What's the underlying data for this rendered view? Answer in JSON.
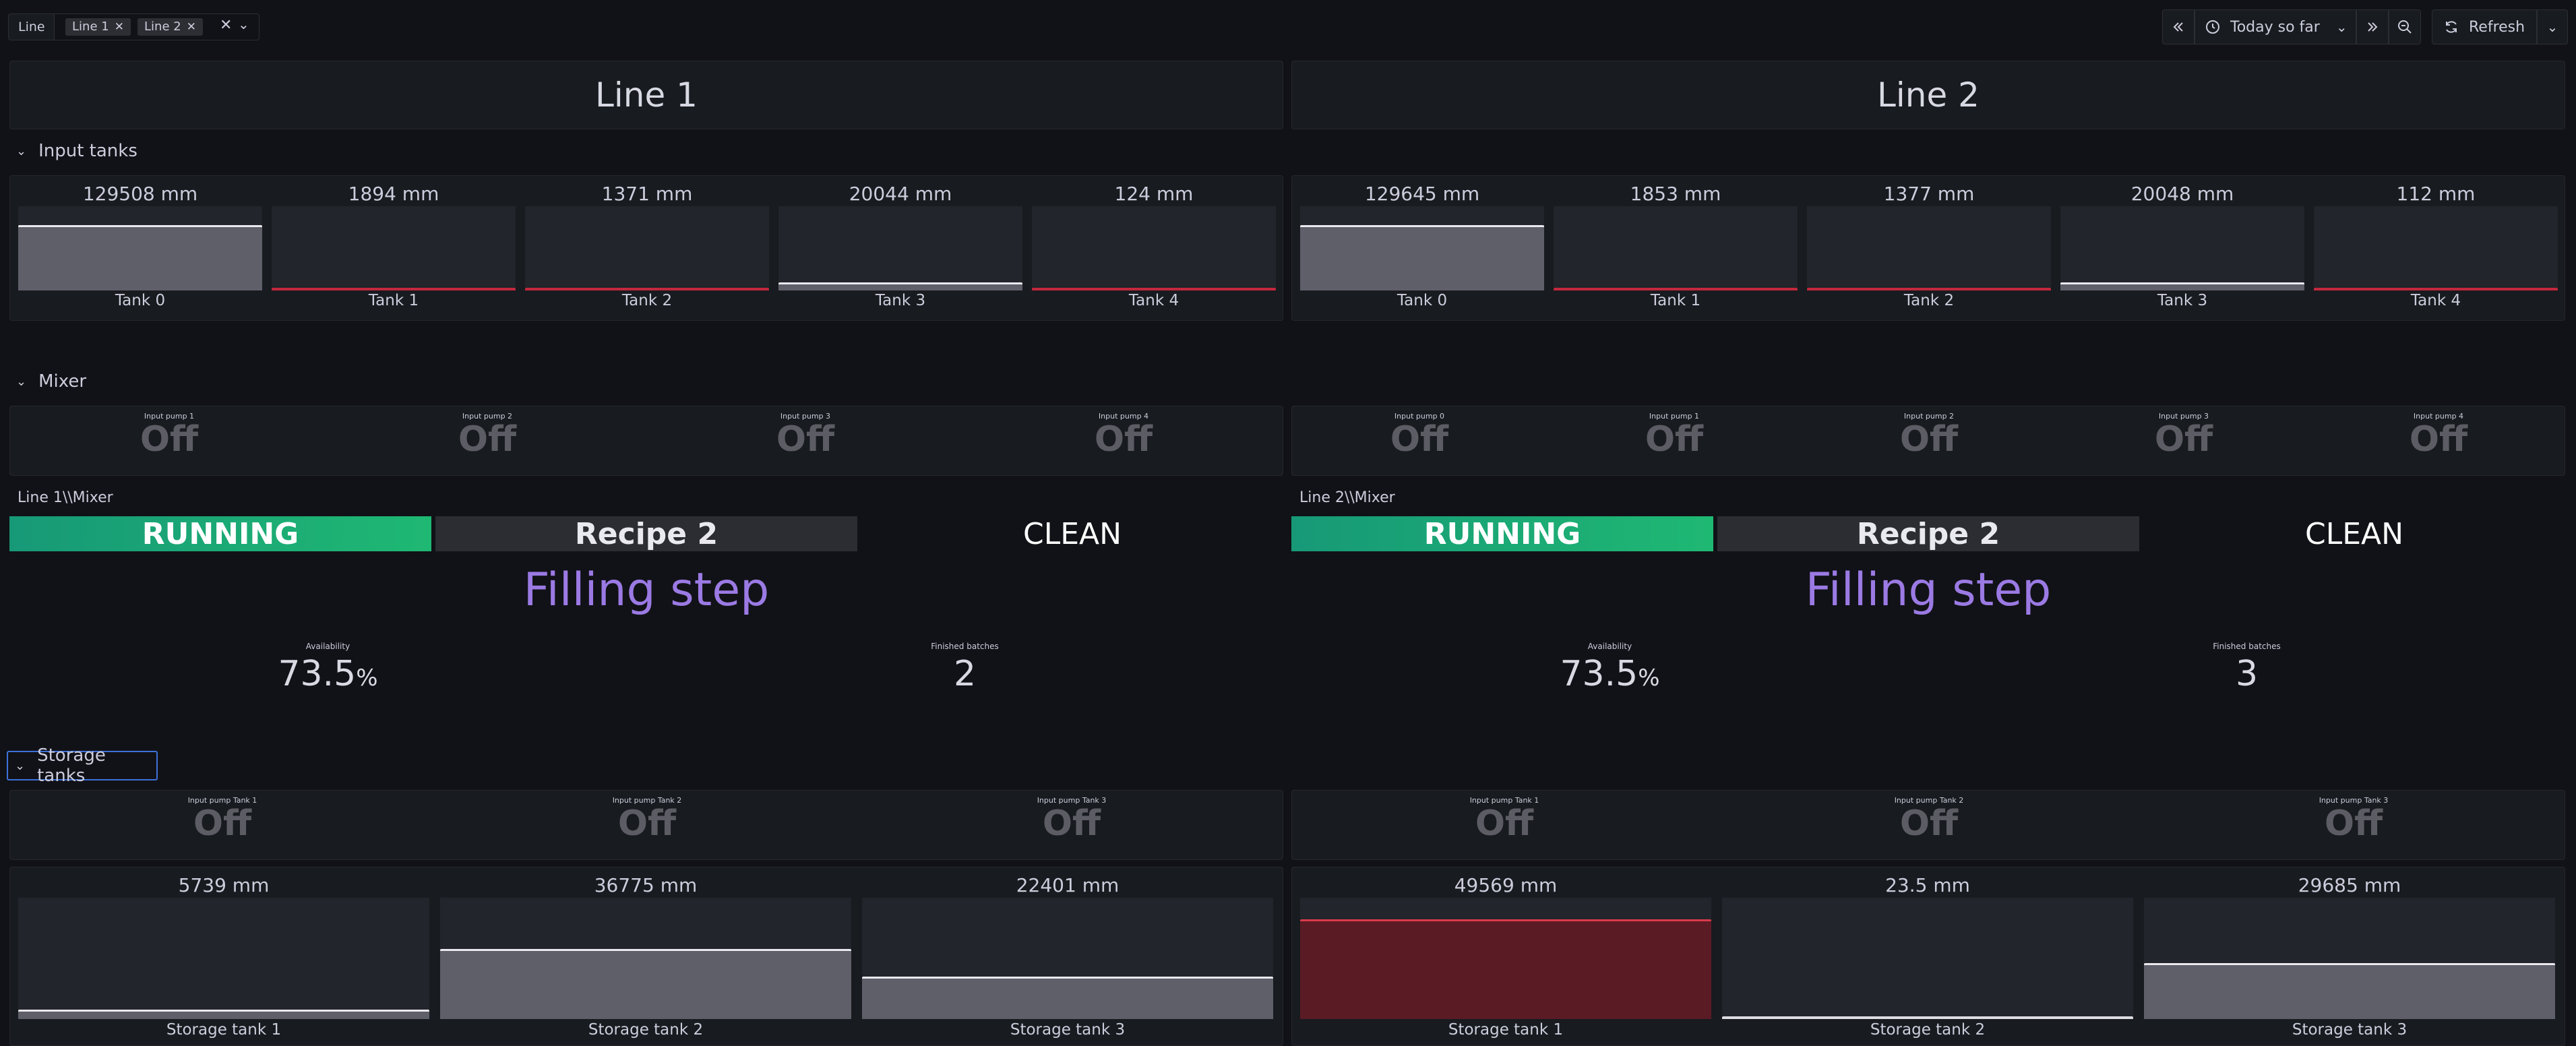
{
  "toolbar": {
    "variable_label": "Line",
    "selected": [
      "Line 1",
      "Line 2"
    ],
    "clear_icon": "close-icon",
    "time_range": "Today so far",
    "refresh_label": "Refresh"
  },
  "sections": {
    "input_tanks": "Input tanks",
    "mixer": "Mixer",
    "storage_tanks": "Storage tanks"
  },
  "lines": [
    {
      "title": "Line 1",
      "input_tanks": [
        {
          "name": "Tank 0",
          "value": "129508 mm",
          "level": 0.78,
          "alarm": false
        },
        {
          "name": "Tank 1",
          "value": "1894 mm",
          "level": 0.0,
          "alarm": true
        },
        {
          "name": "Tank 2",
          "value": "1371 mm",
          "level": 0.0,
          "alarm": true
        },
        {
          "name": "Tank 3",
          "value": "20044 mm",
          "level": 0.12,
          "alarm": false
        },
        {
          "name": "Tank 4",
          "value": "124 mm",
          "level": 0.0,
          "alarm": true
        }
      ],
      "input_pumps": [
        {
          "label": "Input pump 1",
          "value": "Off"
        },
        {
          "label": "Input pump 2",
          "value": "Off"
        },
        {
          "label": "Input pump 3",
          "value": "Off"
        },
        {
          "label": "Input pump 4",
          "value": "Off"
        }
      ],
      "mixer_label": "Line 1\\\\Mixer",
      "state": "RUNNING",
      "recipe": "Recipe 2",
      "clean": "CLEAN",
      "step": "Filling step",
      "availability_label": "Availability",
      "availability": "73.5",
      "availability_unit": "%",
      "batches_label": "Finished batches",
      "batches": "2",
      "storage_pumps": [
        {
          "label": "Input pump Tank 1",
          "value": "Off"
        },
        {
          "label": "Input pump Tank 2",
          "value": "Off"
        },
        {
          "label": "Input pump Tank 3",
          "value": "Off"
        }
      ],
      "storage_tanks": [
        {
          "name": "Storage tank 1",
          "value": "5739 mm",
          "level": 0.08,
          "alarm": false
        },
        {
          "name": "Storage tank 2",
          "value": "36775 mm",
          "level": 0.58,
          "alarm": false
        },
        {
          "name": "Storage tank 3",
          "value": "22401 mm",
          "level": 0.35,
          "alarm": false
        }
      ]
    },
    {
      "title": "Line 2",
      "input_tanks": [
        {
          "name": "Tank 0",
          "value": "129645 mm",
          "level": 0.78,
          "alarm": false
        },
        {
          "name": "Tank 1",
          "value": "1853 mm",
          "level": 0.0,
          "alarm": true
        },
        {
          "name": "Tank 2",
          "value": "1377 mm",
          "level": 0.0,
          "alarm": true
        },
        {
          "name": "Tank 3",
          "value": "20048 mm",
          "level": 0.12,
          "alarm": false
        },
        {
          "name": "Tank 4",
          "value": "112 mm",
          "level": 0.0,
          "alarm": true
        }
      ],
      "input_pumps": [
        {
          "label": "Input pump 0",
          "value": "Off"
        },
        {
          "label": "Input pump 1",
          "value": "Off"
        },
        {
          "label": "Input pump 2",
          "value": "Off"
        },
        {
          "label": "Input pump 3",
          "value": "Off"
        },
        {
          "label": "Input pump 4",
          "value": "Off"
        }
      ],
      "mixer_label": "Line 2\\\\Mixer",
      "state": "RUNNING",
      "recipe": "Recipe 2",
      "clean": "CLEAN",
      "step": "Filling step",
      "availability_label": "Availability",
      "availability": "73.5",
      "availability_unit": "%",
      "batches_label": "Finished batches",
      "batches": "3",
      "storage_pumps": [
        {
          "label": "Input pump Tank 1",
          "value": "Off"
        },
        {
          "label": "Input pump Tank 2",
          "value": "Off"
        },
        {
          "label": "Input pump Tank 3",
          "value": "Off"
        }
      ],
      "storage_tanks": [
        {
          "name": "Storage tank 1",
          "value": "49569 mm",
          "level": 0.82,
          "alarm": true
        },
        {
          "name": "Storage tank 2",
          "value": "23.5 mm",
          "level": 0.0,
          "alarm": false
        },
        {
          "name": "Storage tank 3",
          "value": "29685 mm",
          "level": 0.46,
          "alarm": false
        }
      ]
    }
  ],
  "colors": {
    "background": "#111217",
    "panel": "#181b1f",
    "running": "#1fb873",
    "step": "#9b7ae4",
    "alarm": "#c4283d",
    "focus": "#3d71d9"
  }
}
